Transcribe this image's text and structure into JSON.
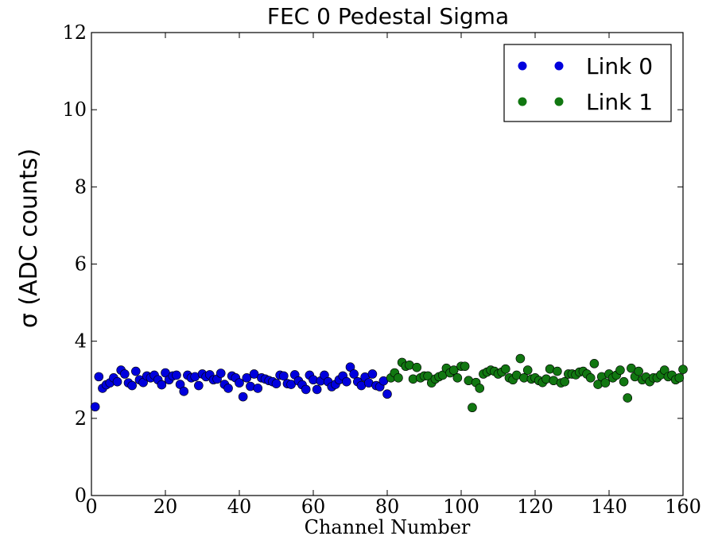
{
  "chart_data": {
    "type": "scatter",
    "title": "FEC 0 Pedestal Sigma",
    "xlabel": "Channel Number",
    "ylabel": "σ (ADC counts)",
    "xlim": [
      0,
      160
    ],
    "ylim": [
      0,
      12
    ],
    "x_ticks": [
      0,
      20,
      40,
      60,
      80,
      100,
      120,
      140,
      160
    ],
    "y_ticks": [
      0,
      2,
      4,
      6,
      8,
      10,
      12
    ],
    "grid": false,
    "legend_position": "top-right",
    "series": [
      {
        "name": "Link 0",
        "color": "#0000dd",
        "x": [
          1,
          2,
          3,
          4,
          5,
          6,
          7,
          8,
          9,
          10,
          11,
          12,
          13,
          14,
          15,
          16,
          17,
          18,
          19,
          20,
          21,
          22,
          23,
          24,
          25,
          26,
          27,
          28,
          29,
          30,
          31,
          32,
          33,
          34,
          35,
          36,
          37,
          38,
          39,
          40,
          41,
          42,
          43,
          44,
          45,
          46,
          47,
          48,
          49,
          50,
          51,
          52,
          53,
          54,
          55,
          56,
          57,
          58,
          59,
          60,
          61,
          62,
          63,
          64,
          65,
          66,
          67,
          68,
          69,
          70,
          71,
          72,
          73,
          74,
          75,
          76,
          77,
          78,
          79,
          80
        ],
        "y": [
          2.3,
          3.08,
          2.78,
          2.87,
          2.92,
          3.05,
          2.95,
          3.25,
          3.15,
          2.92,
          2.85,
          3.22,
          3.0,
          2.93,
          3.1,
          3.05,
          3.12,
          3.0,
          2.87,
          3.18,
          3.0,
          3.1,
          3.12,
          2.88,
          2.7,
          3.12,
          3.05,
          3.08,
          2.85,
          3.15,
          3.08,
          3.13,
          3.0,
          3.02,
          3.17,
          2.88,
          2.78,
          3.1,
          3.05,
          2.92,
          2.56,
          3.05,
          2.83,
          3.15,
          2.78,
          3.05,
          3.02,
          2.98,
          2.95,
          2.9,
          3.12,
          3.1,
          2.9,
          2.88,
          3.13,
          2.97,
          2.87,
          2.75,
          3.12,
          3.0,
          2.75,
          2.97,
          3.12,
          2.95,
          2.82,
          2.88,
          3.0,
          3.1,
          2.95,
          3.33,
          3.15,
          2.95,
          2.85,
          3.07,
          2.92,
          3.15,
          2.85,
          2.82,
          2.97,
          2.63
        ]
      },
      {
        "name": "Link 1",
        "color": "#117711",
        "x": [
          81,
          82,
          83,
          84,
          85,
          86,
          87,
          88,
          89,
          90,
          91,
          92,
          93,
          94,
          95,
          96,
          97,
          98,
          99,
          100,
          101,
          102,
          103,
          104,
          105,
          106,
          107,
          108,
          109,
          110,
          111,
          112,
          113,
          114,
          115,
          116,
          117,
          118,
          119,
          120,
          121,
          122,
          123,
          124,
          125,
          126,
          127,
          128,
          129,
          130,
          131,
          132,
          133,
          134,
          135,
          136,
          137,
          138,
          139,
          140,
          141,
          142,
          143,
          144,
          145,
          146,
          147,
          148,
          149,
          150,
          151,
          152,
          153,
          154,
          155,
          156,
          157,
          158,
          159,
          160
        ],
        "y": [
          3.05,
          3.18,
          3.05,
          3.45,
          3.35,
          3.38,
          3.02,
          3.32,
          3.05,
          3.1,
          3.1,
          2.92,
          3.02,
          3.08,
          3.12,
          3.3,
          3.18,
          3.25,
          3.05,
          3.35,
          3.35,
          2.98,
          2.28,
          2.93,
          2.78,
          3.15,
          3.2,
          3.25,
          3.22,
          3.15,
          3.2,
          3.28,
          3.05,
          3.0,
          3.12,
          3.55,
          3.05,
          3.25,
          3.02,
          3.05,
          2.98,
          2.93,
          3.02,
          3.28,
          2.98,
          3.22,
          2.92,
          2.95,
          3.15,
          3.15,
          3.13,
          3.2,
          3.22,
          3.15,
          3.05,
          3.42,
          2.88,
          3.08,
          2.92,
          3.15,
          3.05,
          3.12,
          3.25,
          2.95,
          2.53,
          3.3,
          3.08,
          3.22,
          3.0,
          3.07,
          2.95,
          3.05,
          3.05,
          3.13,
          3.25,
          3.08,
          3.12,
          3.0,
          3.05,
          3.27
        ]
      }
    ]
  }
}
